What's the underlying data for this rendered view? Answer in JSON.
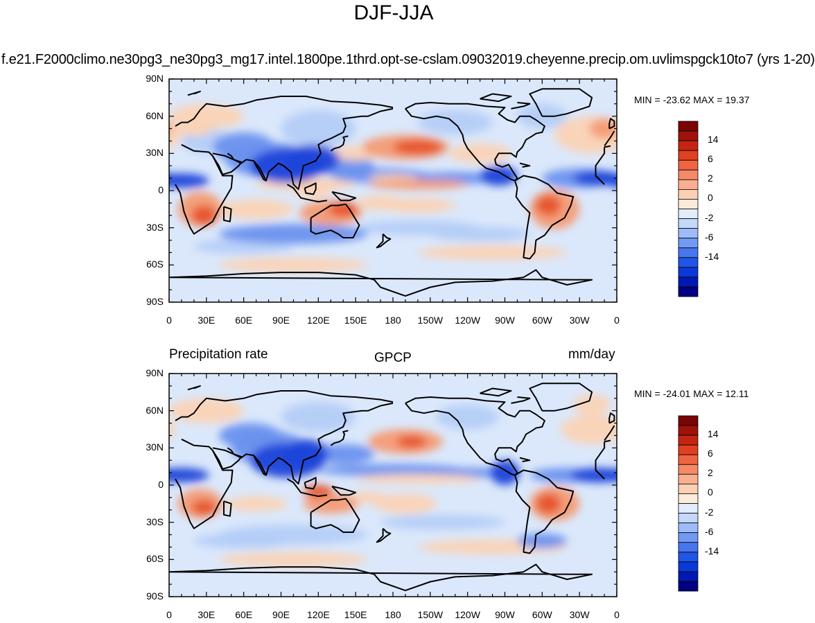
{
  "title": "DJF-JJA",
  "panels": [
    {
      "id": "model",
      "case_name": "f.e21.F2000climo.ne30pg3_ne30pg3_mg17.intel.1800pe.1thrd.opt-se-cslam.09032019.cheyenne.precip.om.uvlimspgck10to7 (yrs 1-20)",
      "left_label": "",
      "center_label": "",
      "right_label": "",
      "min_max": "MIN = -23.62 MAX =  19.37",
      "y_ticks": [
        "90N",
        "60N",
        "30N",
        "0",
        "30S",
        "60S",
        "90S"
      ],
      "x_ticks": [
        "0",
        "30E",
        "60E",
        "90E",
        "120E",
        "150E",
        "180",
        "150W",
        "120W",
        "90W",
        "60W",
        "30W",
        "0"
      ]
    },
    {
      "id": "obs",
      "case_name": "",
      "left_label": "Precipitation rate",
      "center_label": "GPCP",
      "right_label": "mm/day",
      "min_max": "MIN = -24.01 MAX =  12.11",
      "y_ticks": [
        "90N",
        "60N",
        "30N",
        "0",
        "30S",
        "60S",
        "90S"
      ],
      "x_ticks": [
        "0",
        "30E",
        "60E",
        "90E",
        "120E",
        "150E",
        "180",
        "150W",
        "120W",
        "90W",
        "60W",
        "30W",
        "0"
      ]
    }
  ],
  "colorbar": {
    "colors": [
      "#000080",
      "#0019b3",
      "#0a3ad6",
      "#2155e6",
      "#4676f0",
      "#719af5",
      "#9ebcf9",
      "#c3d8fb",
      "#e1ecfd",
      "#fdebd9",
      "#fcd0b4",
      "#fab090",
      "#f68a68",
      "#ef6441",
      "#e0401f",
      "#c42512",
      "#9e1309",
      "#7a0403"
    ],
    "labels": [
      "-14",
      "-6",
      "-2",
      "0",
      "2",
      "6",
      "14"
    ]
  },
  "map_colors": {
    "ocean_base": "#dbe8fb",
    "pos_light": "#fbd3b5",
    "pos_mid": "#f49b74",
    "pos_strong": "#e6532a",
    "neg_light": "#b4cdf7",
    "neg_mid": "#6a91ee",
    "neg_strong": "#1d45d9",
    "coast": "#000000"
  }
}
